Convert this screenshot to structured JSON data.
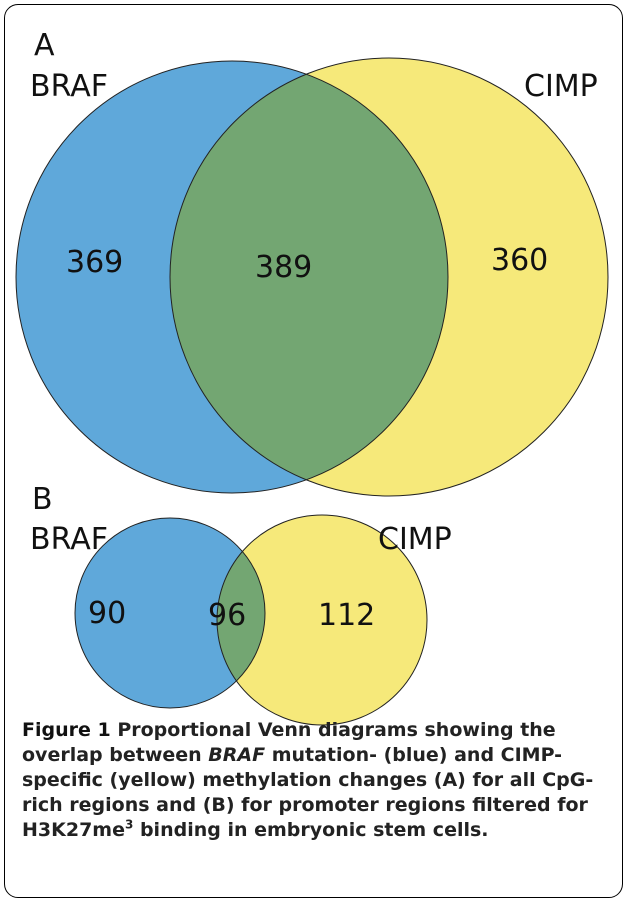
{
  "panel_a": {
    "letter": "A",
    "set_left_label": "BRAF",
    "set_right_label": "CIMP",
    "left_only": "369",
    "overlap": "389",
    "right_only": "360"
  },
  "panel_b": {
    "letter": "B",
    "set_left_label": "BRAF",
    "set_right_label": "CIMP",
    "left_only": "90",
    "overlap": "96",
    "right_only": "112"
  },
  "colors": {
    "left": "#5fa8da",
    "right": "#f6e97a",
    "overlap": "#73a672"
  },
  "caption": {
    "label": "Figure 1",
    "text_1": " Proportional Venn diagrams showing the overlap between ",
    "italic": "BRAF",
    "text_2": " mutation- (blue) and CIMP-specific (yellow) methylation changes (A) for all CpG-rich regions and (B) for promoter regions filtered for H3K27me",
    "sup": "3",
    "text_3": " binding in embryonic stem cells."
  }
}
